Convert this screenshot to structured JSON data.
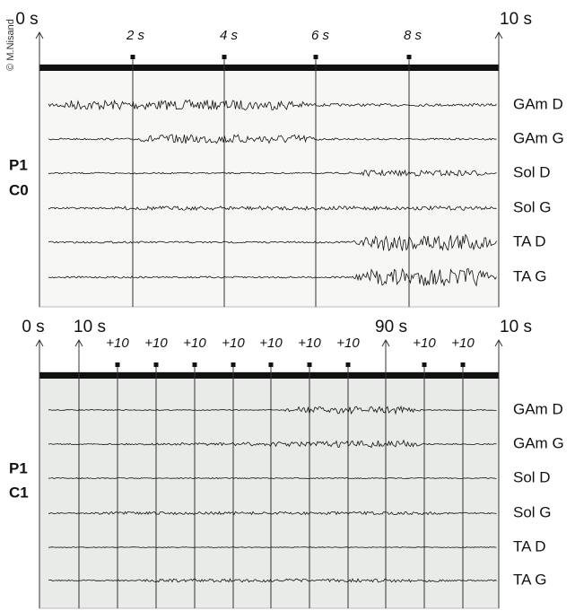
{
  "credit": "© M.Nisand",
  "panels": [
    {
      "side_label": [
        "P1",
        "C0"
      ],
      "time_labels": [
        "0 s",
        "2 s",
        "4 s",
        "6 s",
        "8 s",
        "10 s"
      ],
      "channels": [
        "GAm D",
        "GAm G",
        "Sol D",
        "Sol G",
        "TA D",
        "TA G"
      ]
    },
    {
      "side_label": [
        "P1",
        "C1"
      ],
      "time_labels": [
        "0 s",
        "10 s",
        "+10",
        "+10",
        "+10",
        "+10",
        "+10",
        "+10",
        "+10",
        "90 s",
        "+10",
        "+10",
        "10 s"
      ],
      "channels": [
        "GAm D",
        "GAm G",
        "Sol D",
        "Sol G",
        "TA D",
        "TA G"
      ]
    }
  ]
}
